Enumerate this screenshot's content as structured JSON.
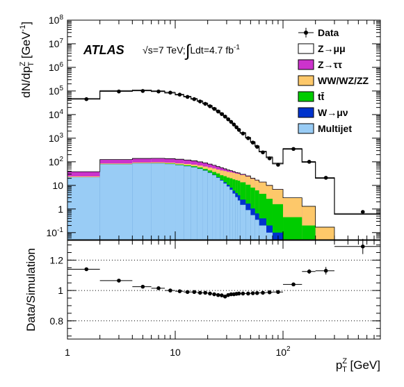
{
  "chart_data": [
    {
      "type": "area",
      "ylabel": "dN/dp",
      "ylabel_sup": "Z",
      "ylabel_sub": "T",
      "ylabel_unit": "[GeV",
      "ylabel_unit_sup": "-1",
      "ylabel_unit_close": "]",
      "xscale": "log",
      "yscale": "log",
      "xlim": [
        1,
        800
      ],
      "ylim": [
        0.05,
        100000000
      ],
      "y_ticks": [
        {
          "v": 100000000,
          "base": "10",
          "exp": "8"
        },
        {
          "v": 10000000,
          "base": "10",
          "exp": "7"
        },
        {
          "v": 1000000,
          "base": "10",
          "exp": "6"
        },
        {
          "v": 100000,
          "base": "10",
          "exp": "5"
        },
        {
          "v": 10000,
          "base": "10",
          "exp": "4"
        },
        {
          "v": 1000,
          "base": "10",
          "exp": "3"
        },
        {
          "v": 100,
          "base": "10",
          "exp": "2"
        },
        {
          "v": 10,
          "base": "10",
          "exp": ""
        },
        {
          "v": 1,
          "base": "1",
          "exp": ""
        },
        {
          "v": 0.1,
          "base": "10",
          "exp": "-1"
        }
      ],
      "atlas_label": "ATLAS",
      "annotation": {
        "sqrt": "√",
        "energy": "s=7 TeV;",
        "integral": "∫",
        "lumi": "Ldt=4.7 fb",
        "lumi_sup": "-1"
      },
      "legend": [
        {
          "name": "Data",
          "kind": "marker",
          "color": "#000000"
        },
        {
          "name": "Z→μμ",
          "kind": "box",
          "color": "#ffffff"
        },
        {
          "name": "Z→ττ",
          "kind": "box",
          "color": "#cc33cc"
        },
        {
          "name": "WW/WZ/ZZ",
          "kind": "box",
          "color": "#fdc86a"
        },
        {
          "name": "tt̄",
          "kind": "box",
          "color": "#00cc00"
        },
        {
          "name": "W→μν",
          "kind": "box",
          "color": "#0033cc"
        },
        {
          "name": "Multijet",
          "kind": "box",
          "color": "#99ccf5"
        }
      ],
      "bin_edges": [
        0,
        2,
        4,
        6,
        8,
        10,
        12,
        14,
        16,
        18,
        20,
        22,
        24,
        26,
        28,
        30,
        32,
        34,
        36,
        38,
        40,
        42,
        44,
        46,
        48,
        50,
        52,
        54,
        56,
        58,
        60,
        62,
        64,
        66,
        68,
        70,
        72,
        74,
        76,
        78,
        80,
        82,
        84,
        86,
        88,
        90,
        92,
        94,
        96,
        98,
        100,
        102,
        104,
        106,
        108,
        110,
        112,
        114,
        116,
        118,
        120
      ],
      "bins": [
        {
          "lo": 1,
          "hi": 2,
          "multijet": 22,
          "wmunu": 0,
          "ttbar": 0,
          "diboson": 2,
          "ztautau": 14,
          "zmumu": 45000
        },
        {
          "lo": 2,
          "hi": 4,
          "multijet": 78,
          "wmunu": 0.5,
          "ttbar": 1,
          "diboson": 5,
          "ztautau": 40,
          "zmumu": 97000
        },
        {
          "lo": 4,
          "hi": 6,
          "multijet": 85,
          "wmunu": 0.7,
          "ttbar": 1.5,
          "diboson": 6,
          "ztautau": 45,
          "zmumu": 103000
        },
        {
          "lo": 6,
          "hi": 8,
          "multijet": 85,
          "wmunu": 0.8,
          "ttbar": 2,
          "diboson": 7,
          "ztautau": 45,
          "zmumu": 95000
        },
        {
          "lo": 8,
          "hi": 10,
          "multijet": 80,
          "wmunu": 1,
          "ttbar": 3,
          "diboson": 8,
          "ztautau": 44,
          "zmumu": 82000
        },
        {
          "lo": 10,
          "hi": 12,
          "multijet": 72,
          "wmunu": 1,
          "ttbar": 4,
          "diboson": 9,
          "ztautau": 42,
          "zmumu": 68000
        },
        {
          "lo": 12,
          "hi": 14,
          "multijet": 65,
          "wmunu": 1,
          "ttbar": 5,
          "diboson": 10,
          "ztautau": 38,
          "zmumu": 56000
        },
        {
          "lo": 14,
          "hi": 16,
          "multijet": 58,
          "wmunu": 1,
          "ttbar": 6,
          "diboson": 11,
          "ztautau": 34,
          "zmumu": 45000
        },
        {
          "lo": 16,
          "hi": 18,
          "multijet": 50,
          "wmunu": 1,
          "ttbar": 6.5,
          "diboson": 12,
          "ztautau": 30,
          "zmumu": 36000
        },
        {
          "lo": 18,
          "hi": 20,
          "multijet": 42,
          "wmunu": 1,
          "ttbar": 7,
          "diboson": 13,
          "ztautau": 27,
          "zmumu": 29000
        },
        {
          "lo": 20,
          "hi": 22,
          "multijet": 34,
          "wmunu": 1,
          "ttbar": 8,
          "diboson": 14,
          "ztautau": 23,
          "zmumu": 23000
        },
        {
          "lo": 22,
          "hi": 24,
          "multijet": 27,
          "wmunu": 1,
          "ttbar": 9,
          "diboson": 15,
          "ztautau": 19,
          "zmumu": 18000
        },
        {
          "lo": 24,
          "hi": 26,
          "multijet": 21,
          "wmunu": 1,
          "ttbar": 10,
          "diboson": 15,
          "ztautau": 16,
          "zmumu": 14000
        },
        {
          "lo": 26,
          "hi": 28,
          "multijet": 16,
          "wmunu": 1,
          "ttbar": 10,
          "diboson": 16,
          "ztautau": 13,
          "zmumu": 11000
        },
        {
          "lo": 28,
          "hi": 30,
          "multijet": 12,
          "wmunu": 1.5,
          "ttbar": 11,
          "diboson": 16,
          "ztautau": 10,
          "zmumu": 8500
        },
        {
          "lo": 30,
          "hi": 32,
          "multijet": 9,
          "wmunu": 1.5,
          "ttbar": 11,
          "diboson": 16,
          "ztautau": 8,
          "zmumu": 6500
        },
        {
          "lo": 32,
          "hi": 34,
          "multijet": 6.5,
          "wmunu": 1.5,
          "ttbar": 12,
          "diboson": 16,
          "ztautau": 6,
          "zmumu": 5000
        },
        {
          "lo": 34,
          "hi": 36,
          "multijet": 4.5,
          "wmunu": 1.5,
          "ttbar": 12,
          "diboson": 16,
          "ztautau": 4.5,
          "zmumu": 3900
        },
        {
          "lo": 36,
          "hi": 38,
          "multijet": 3.2,
          "wmunu": 1.5,
          "ttbar": 12,
          "diboson": 15,
          "ztautau": 3.5,
          "zmumu": 3000
        },
        {
          "lo": 38,
          "hi": 40,
          "multijet": 2.3,
          "wmunu": 1.5,
          "ttbar": 12,
          "diboson": 15,
          "ztautau": 2.8,
          "zmumu": 2300
        },
        {
          "lo": 40,
          "hi": 45,
          "multijet": 1.5,
          "wmunu": 1,
          "ttbar": 11,
          "diboson": 14,
          "ztautau": 2,
          "zmumu": 1600
        },
        {
          "lo": 45,
          "hi": 50,
          "multijet": 0.9,
          "wmunu": 0.8,
          "ttbar": 9,
          "diboson": 13,
          "ztautau": 1.5,
          "zmumu": 1000
        },
        {
          "lo": 50,
          "hi": 55,
          "multijet": 0.55,
          "wmunu": 0.5,
          "ttbar": 7,
          "diboson": 11,
          "ztautau": 1,
          "zmumu": 650
        },
        {
          "lo": 55,
          "hi": 60,
          "multijet": 0.35,
          "wmunu": 0.3,
          "ttbar": 5.5,
          "diboson": 10,
          "ztautau": 0.7,
          "zmumu": 430
        },
        {
          "lo": 60,
          "hi": 70,
          "multijet": 0.2,
          "wmunu": 0.2,
          "ttbar": 4,
          "diboson": 9,
          "ztautau": 0.5,
          "zmumu": 250
        },
        {
          "lo": 70,
          "hi": 80,
          "multijet": 0.1,
          "wmunu": 0.1,
          "ttbar": 2.5,
          "diboson": 7,
          "ztautau": 0.3,
          "zmumu": 140
        },
        {
          "lo": 80,
          "hi": 100,
          "multijet": 0.05,
          "wmunu": 0.05,
          "ttbar": 1.5,
          "diboson": 5,
          "ztautau": 0.2,
          "zmumu": 75
        },
        {
          "lo": 100,
          "hi": 150,
          "multijet": 0,
          "wmunu": 0,
          "ttbar": 0.45,
          "diboson": 2.5,
          "ztautau": 0.05,
          "zmumu": 340
        },
        {
          "lo": 150,
          "hi": 200,
          "multijet": 0,
          "wmunu": 0,
          "ttbar": 0.2,
          "diboson": 1.1,
          "ztautau": 0,
          "zmumu": 95
        },
        {
          "lo": 200,
          "hi": 300,
          "multijet": 0,
          "wmunu": 0,
          "ttbar": 0,
          "diboson": 0.17,
          "ztautau": 0,
          "zmumu": 20
        },
        {
          "lo": 300,
          "hi": 800,
          "multijet": 0,
          "wmunu": 0,
          "ttbar": 0,
          "diboson": 0,
          "ztautau": 0,
          "zmumu": 0.6
        }
      ],
      "data_points": [
        {
          "x": 1.5,
          "y": 45000
        },
        {
          "x": 3,
          "y": 95000
        },
        {
          "x": 5,
          "y": 100000
        },
        {
          "x": 7,
          "y": 95000
        },
        {
          "x": 9,
          "y": 85000
        },
        {
          "x": 11,
          "y": 70000
        },
        {
          "x": 13,
          "y": 56000
        },
        {
          "x": 15,
          "y": 45000
        },
        {
          "x": 17,
          "y": 36000
        },
        {
          "x": 19,
          "y": 28500
        },
        {
          "x": 21,
          "y": 22500
        },
        {
          "x": 23,
          "y": 17500
        },
        {
          "x": 25,
          "y": 13500
        },
        {
          "x": 27,
          "y": 10500
        },
        {
          "x": 29,
          "y": 8200
        },
        {
          "x": 31,
          "y": 6300
        },
        {
          "x": 33,
          "y": 4900
        },
        {
          "x": 35,
          "y": 3800
        },
        {
          "x": 37,
          "y": 2900
        },
        {
          "x": 39,
          "y": 2250
        },
        {
          "x": 42.5,
          "y": 1580
        },
        {
          "x": 47.5,
          "y": 1000
        },
        {
          "x": 52.5,
          "y": 650
        },
        {
          "x": 57.5,
          "y": 430
        },
        {
          "x": 65,
          "y": 250
        },
        {
          "x": 75,
          "y": 140
        },
        {
          "x": 90,
          "y": 75
        },
        {
          "x": 125,
          "y": 350
        },
        {
          "x": 175,
          "y": 100
        },
        {
          "x": 250,
          "y": 21
        },
        {
          "x": 550,
          "y": 0.75
        }
      ]
    },
    {
      "type": "scatter",
      "ylabel": "Data/Simulation",
      "xlabel": "p",
      "xlabel_sup": "Z",
      "xlabel_sub": "T",
      "xlabel_unit": "[GeV]",
      "xscale": "log",
      "xlim": [
        1,
        800
      ],
      "ylim": [
        0.68,
        1.33
      ],
      "y_ticks": [
        {
          "v": 1.2,
          "label": "1.2"
        },
        {
          "v": 1,
          "label": "1"
        },
        {
          "v": 0.8,
          "label": "0.8"
        }
      ],
      "x_ticks": [
        {
          "v": 1,
          "base": "1",
          "exp": ""
        },
        {
          "v": 10,
          "base": "10",
          "exp": ""
        },
        {
          "v": 100,
          "base": "10",
          "exp": "2"
        }
      ],
      "reference_lines": [
        1.2,
        1,
        0.8
      ],
      "points": [
        {
          "x": 1.5,
          "y": 1.14,
          "xlo": 1,
          "xhi": 2,
          "err": 0.005
        },
        {
          "x": 3,
          "y": 1.065,
          "xlo": 2,
          "xhi": 4,
          "err": 0.004
        },
        {
          "x": 5,
          "y": 1.025,
          "xlo": 4,
          "xhi": 6,
          "err": 0.004
        },
        {
          "x": 7,
          "y": 1.015,
          "xlo": 6,
          "xhi": 8,
          "err": 0.004
        },
        {
          "x": 9,
          "y": 1.0,
          "xlo": 8,
          "xhi": 10,
          "err": 0.004
        },
        {
          "x": 11,
          "y": 0.995,
          "xlo": 10,
          "xhi": 12,
          "err": 0.004
        },
        {
          "x": 13,
          "y": 0.99,
          "xlo": 12,
          "xhi": 14,
          "err": 0.004
        },
        {
          "x": 15,
          "y": 0.99,
          "xlo": 14,
          "xhi": 16,
          "err": 0.004
        },
        {
          "x": 17,
          "y": 0.985,
          "xlo": 16,
          "xhi": 18,
          "err": 0.004
        },
        {
          "x": 19,
          "y": 0.985,
          "xlo": 18,
          "xhi": 20,
          "err": 0.004
        },
        {
          "x": 21,
          "y": 0.98,
          "xlo": 20,
          "xhi": 22,
          "err": 0.004
        },
        {
          "x": 23,
          "y": 0.975,
          "xlo": 22,
          "xhi": 24,
          "err": 0.004
        },
        {
          "x": 25,
          "y": 0.97,
          "xlo": 24,
          "xhi": 26,
          "err": 0.004
        },
        {
          "x": 27,
          "y": 0.968,
          "xlo": 26,
          "xhi": 28,
          "err": 0.005
        },
        {
          "x": 29,
          "y": 0.96,
          "xlo": 28,
          "xhi": 30,
          "err": 0.005
        },
        {
          "x": 31,
          "y": 0.97,
          "xlo": 30,
          "xhi": 32,
          "err": 0.005
        },
        {
          "x": 33,
          "y": 0.975,
          "xlo": 32,
          "xhi": 34,
          "err": 0.005
        },
        {
          "x": 35,
          "y": 0.975,
          "xlo": 34,
          "xhi": 36,
          "err": 0.005
        },
        {
          "x": 37,
          "y": 0.978,
          "xlo": 36,
          "xhi": 38,
          "err": 0.006
        },
        {
          "x": 39,
          "y": 0.98,
          "xlo": 38,
          "xhi": 40,
          "err": 0.006
        },
        {
          "x": 42.5,
          "y": 0.98,
          "xlo": 40,
          "xhi": 45,
          "err": 0.006
        },
        {
          "x": 47.5,
          "y": 0.98,
          "xlo": 45,
          "xhi": 50,
          "err": 0.007
        },
        {
          "x": 52.5,
          "y": 0.982,
          "xlo": 50,
          "xhi": 55,
          "err": 0.008
        },
        {
          "x": 57.5,
          "y": 0.983,
          "xlo": 55,
          "xhi": 60,
          "err": 0.01
        },
        {
          "x": 65,
          "y": 0.985,
          "xlo": 60,
          "xhi": 70,
          "err": 0.01
        },
        {
          "x": 75,
          "y": 0.988,
          "xlo": 70,
          "xhi": 80,
          "err": 0.012
        },
        {
          "x": 90,
          "y": 0.99,
          "xlo": 80,
          "xhi": 100,
          "err": 0.012
        },
        {
          "x": 125,
          "y": 1.04,
          "xlo": 100,
          "xhi": 150,
          "err": 0.01
        },
        {
          "x": 175,
          "y": 1.125,
          "xlo": 150,
          "xhi": 200,
          "err": 0.015
        },
        {
          "x": 250,
          "y": 1.13,
          "xlo": 200,
          "xhi": 300,
          "err": 0.025
        },
        {
          "x": 550,
          "y": 1.29,
          "xlo": 300,
          "xhi": 800,
          "err": 0.05
        }
      ]
    }
  ]
}
